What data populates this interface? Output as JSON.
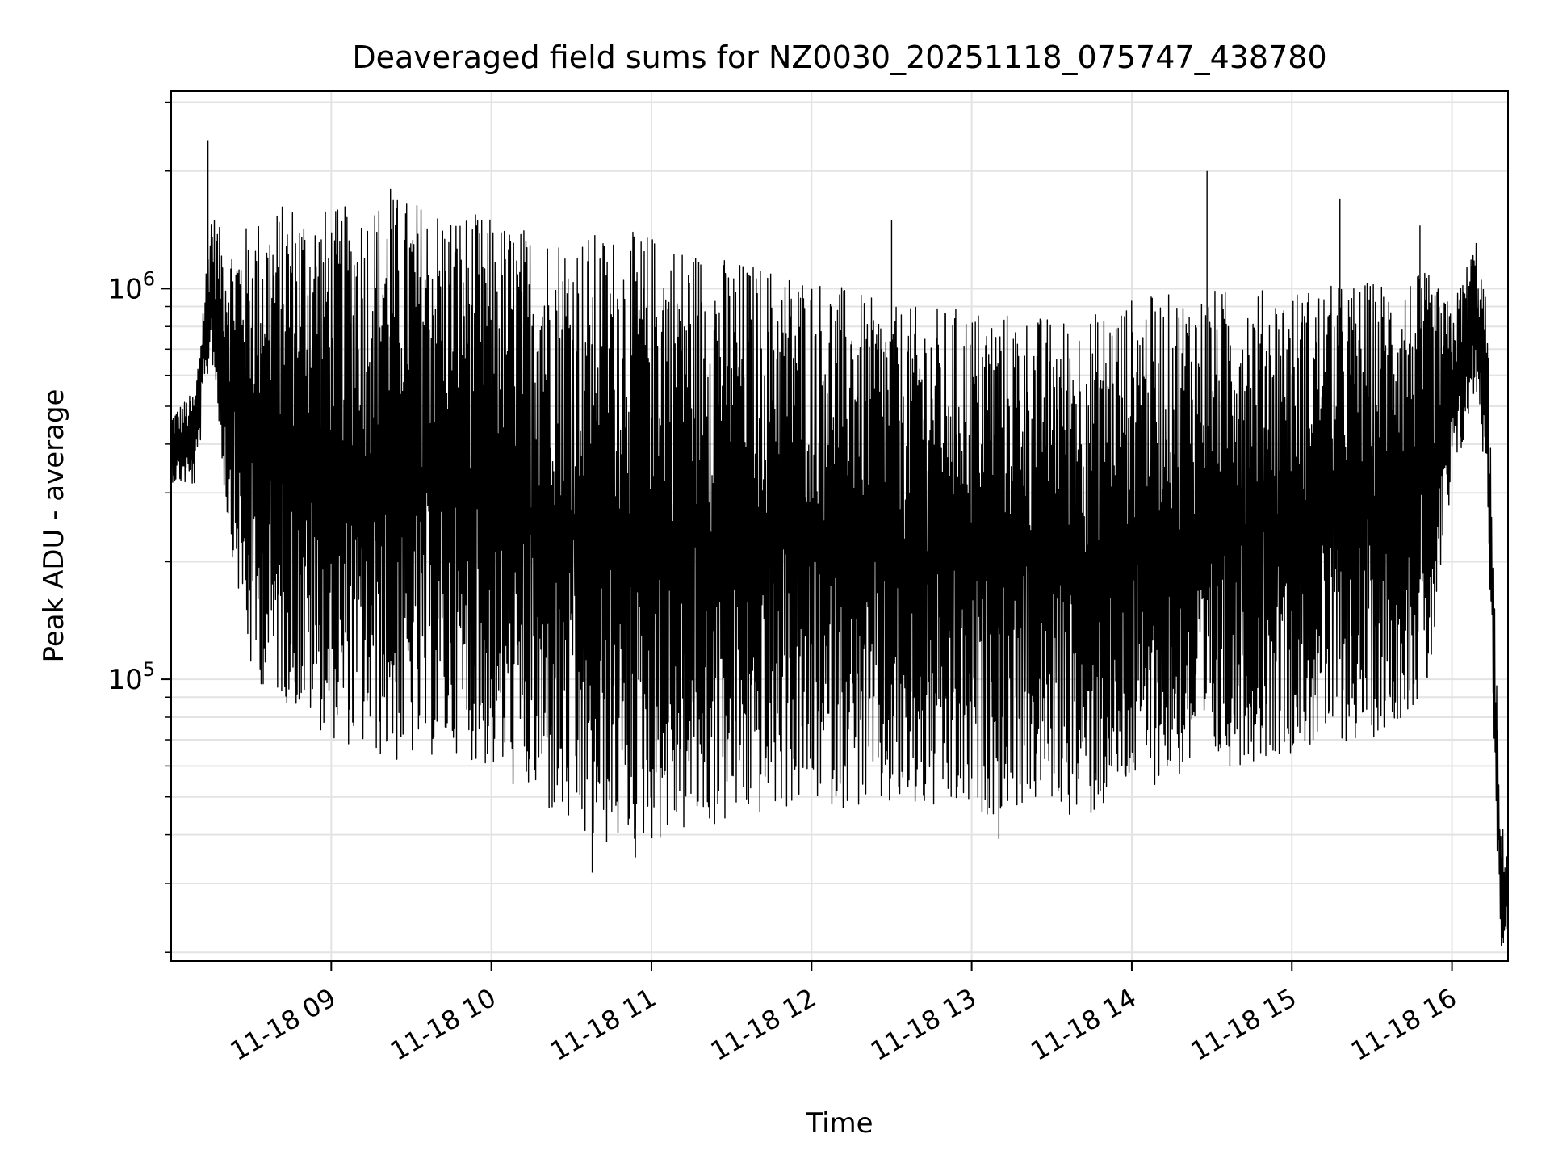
{
  "chart_data": {
    "type": "line",
    "title": "Deaveraged field sums for NZ0030_20251118_075747_438780",
    "xlabel": "Time",
    "ylabel": "Peak ADU - average",
    "yscale": "log",
    "grid": true,
    "xlim_hours": [
      8.0,
      16.35
    ],
    "ylim": [
      19000,
      3200000
    ],
    "x_ticks": [
      {
        "hour": 9,
        "label": "11-18 09"
      },
      {
        "hour": 10,
        "label": "11-18 10"
      },
      {
        "hour": 11,
        "label": "11-18 11"
      },
      {
        "hour": 12,
        "label": "11-18 12"
      },
      {
        "hour": 13,
        "label": "11-18 13"
      },
      {
        "hour": 14,
        "label": "11-18 14"
      },
      {
        "hour": 15,
        "label": "11-18 15"
      },
      {
        "hour": 16,
        "label": "11-18 16"
      }
    ],
    "y_ticks": [
      {
        "value": 100000,
        "base": "10",
        "exp": "5"
      },
      {
        "value": 1000000,
        "base": "10",
        "exp": "6"
      }
    ],
    "series": [
      {
        "name": "field sums",
        "color": "#000000",
        "envelope": [
          {
            "hour": 8.0,
            "low": 320000,
            "high": 480000
          },
          {
            "hour": 8.15,
            "low": 310000,
            "high": 550000
          },
          {
            "hour": 8.25,
            "low": 700000,
            "high": 1600000
          },
          {
            "hour": 8.35,
            "low": 250000,
            "high": 1300000
          },
          {
            "hour": 8.5,
            "low": 100000,
            "high": 1500000
          },
          {
            "hour": 8.75,
            "low": 85000,
            "high": 1700000
          },
          {
            "hour": 9.0,
            "low": 70000,
            "high": 1600000
          },
          {
            "hour": 9.4,
            "low": 60000,
            "high": 1750000
          },
          {
            "hour": 9.8,
            "low": 65000,
            "high": 1600000
          },
          {
            "hour": 10.2,
            "low": 50000,
            "high": 1450000
          },
          {
            "hour": 10.6,
            "low": 36000,
            "high": 1400000
          },
          {
            "hour": 11.0,
            "low": 38000,
            "high": 1400000
          },
          {
            "hour": 11.5,
            "low": 42000,
            "high": 1200000
          },
          {
            "hour": 12.0,
            "low": 48000,
            "high": 1100000
          },
          {
            "hour": 12.5,
            "low": 45000,
            "high": 900000
          },
          {
            "hour": 13.0,
            "low": 44000,
            "high": 900000
          },
          {
            "hour": 13.5,
            "low": 48000,
            "high": 850000
          },
          {
            "hour": 13.7,
            "low": 42000,
            "high": 850000
          },
          {
            "hour": 14.0,
            "low": 52000,
            "high": 950000
          },
          {
            "hour": 14.5,
            "low": 58000,
            "high": 1000000
          },
          {
            "hour": 15.0,
            "low": 65000,
            "high": 1000000
          },
          {
            "hour": 15.5,
            "low": 70000,
            "high": 1050000
          },
          {
            "hour": 15.85,
            "low": 90000,
            "high": 1100000
          },
          {
            "hour": 16.0,
            "low": 300000,
            "high": 900000
          },
          {
            "hour": 16.15,
            "low": 550000,
            "high": 1350000
          },
          {
            "hour": 16.22,
            "low": 300000,
            "high": 900000
          },
          {
            "hour": 16.3,
            "low": 20000,
            "high": 45000
          },
          {
            "hour": 16.35,
            "low": 22000,
            "high": 36000
          }
        ],
        "spikes": [
          {
            "hour": 8.23,
            "value": 2400000
          },
          {
            "hour": 9.37,
            "value": 1800000
          },
          {
            "hour": 12.5,
            "value": 1500000
          },
          {
            "hour": 14.47,
            "value": 2000000
          },
          {
            "hour": 15.3,
            "value": 1700000
          },
          {
            "hour": 15.8,
            "value": 1450000
          },
          {
            "hour": 10.63,
            "value": 32000
          },
          {
            "hour": 10.9,
            "value": 35000
          },
          {
            "hour": 13.17,
            "value": 39000
          }
        ]
      }
    ]
  }
}
